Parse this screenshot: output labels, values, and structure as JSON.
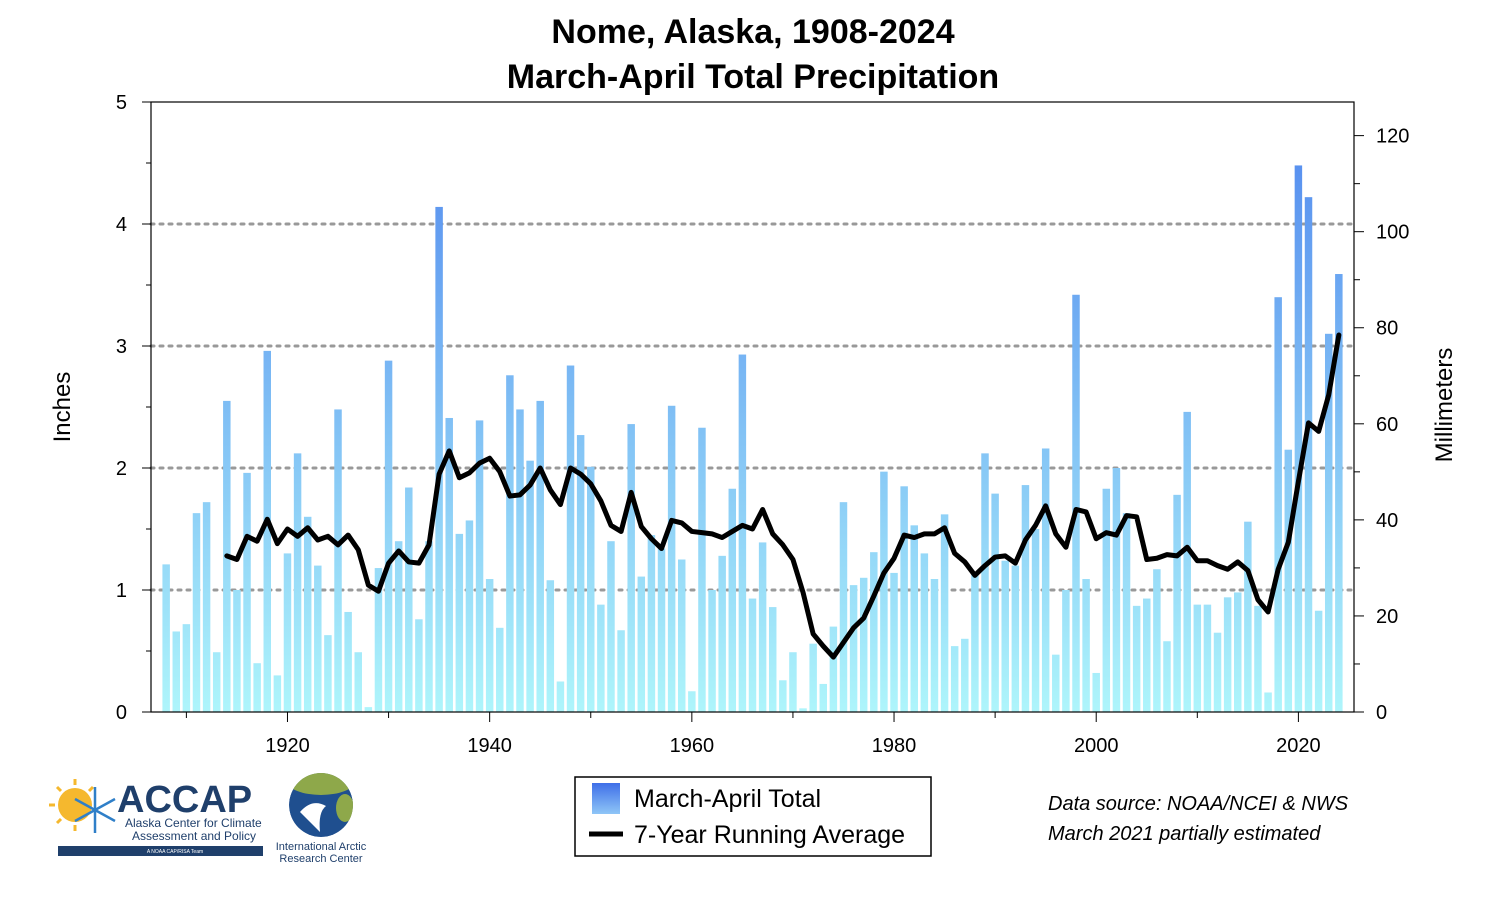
{
  "colors": {
    "bar_top": "#4f86ee",
    "bar_bottom": "#aef5fb",
    "line": "#000000",
    "grid": "#999999",
    "logo_navy": "#1f3f6b",
    "logo_yellow": "#f5b82e",
    "logo_blue": "#2f7fc8",
    "globe_blue": "#1f4f8f",
    "globe_green": "#8ea84a"
  },
  "logos": {
    "accap_name": "ACCAP",
    "accap_line1": "Alaska Center for Climate",
    "accap_line2": "Assessment and Policy",
    "accap_banner": "A NOAA CAP/RISA Team",
    "iarc_line1": "International Arctic",
    "iarc_line2": "Research Center",
    "icons": [
      "sun-icon",
      "snowflake-icon",
      "globe-icon",
      "bird-icon"
    ]
  },
  "source": {
    "line1": "Data source: NOAA/NCEI & NWS",
    "line2": "March 2021 partially estimated"
  },
  "chart_data": {
    "type": "bar",
    "title": "Nome, Alaska, 1908-2024",
    "subtitle": "March-April Total Precipitation",
    "ylabel": "Inches",
    "y2label": "Millimeters",
    "xlim": [
      1906.5,
      2025.5
    ],
    "ylim": [
      0,
      5
    ],
    "y2lim": [
      0,
      127
    ],
    "xticks": [
      1920,
      1940,
      1960,
      1980,
      2000,
      2020
    ],
    "yticks": [
      0,
      1,
      2,
      3,
      4,
      5
    ],
    "y2ticks": [
      0,
      20,
      40,
      60,
      80,
      100,
      120
    ],
    "grid": "horizontal dotted at 1, 2, 3, 4",
    "legend_placement": "bottom-center",
    "legend": [
      "March-April Total",
      "7-Year Running Average"
    ],
    "series": [
      {
        "name": "March-April Total",
        "type": "bar",
        "start_year": 1908,
        "values": [
          1.21,
          0.66,
          0.72,
          1.63,
          1.72,
          0.49,
          2.55,
          1.0,
          1.96,
          0.4,
          2.96,
          0.3,
          1.3,
          2.12,
          1.6,
          1.2,
          0.63,
          2.48,
          0.82,
          0.49,
          0.04,
          1.18,
          2.88,
          1.4,
          1.84,
          0.76,
          1.4,
          4.14,
          2.41,
          1.46,
          1.57,
          2.39,
          1.09,
          0.69,
          2.76,
          2.48,
          2.06,
          2.55,
          1.08,
          0.25,
          2.84,
          2.27,
          2.01,
          0.88,
          1.4,
          0.67,
          2.36,
          1.11,
          1.45,
          1.34,
          2.51,
          1.25,
          0.17,
          2.33,
          1.0,
          1.28,
          1.83,
          2.93,
          0.93,
          1.39,
          0.86,
          0.26,
          0.49,
          0.03,
          0.56,
          0.23,
          0.7,
          1.72,
          1.04,
          1.1,
          1.31,
          1.97,
          1.14,
          1.85,
          1.53,
          1.3,
          1.09,
          1.62,
          0.54,
          0.6,
          1.14,
          2.12,
          1.79,
          1.24,
          1.2,
          1.86,
          1.5,
          2.16,
          0.47,
          1.0,
          3.42,
          1.09,
          0.32,
          1.83,
          2.0,
          1.63,
          0.87,
          0.93,
          1.17,
          0.58,
          1.78,
          2.46,
          0.88,
          0.88,
          0.65,
          0.94,
          0.98,
          1.56,
          0.87,
          0.16,
          3.4,
          2.15,
          4.48,
          4.22,
          0.83,
          3.1,
          3.59
        ]
      },
      {
        "name": "7-Year Running Average",
        "type": "line",
        "start_year": 1914,
        "values": [
          1.28,
          1.25,
          1.44,
          1.4,
          1.58,
          1.38,
          1.5,
          1.44,
          1.51,
          1.41,
          1.44,
          1.37,
          1.45,
          1.33,
          1.04,
          0.99,
          1.22,
          1.32,
          1.23,
          1.22,
          1.37,
          1.95,
          2.14,
          1.92,
          1.96,
          2.04,
          2.08,
          1.97,
          1.77,
          1.78,
          1.86,
          2.0,
          1.82,
          1.7,
          2.0,
          1.95,
          1.87,
          1.73,
          1.53,
          1.48,
          1.8,
          1.52,
          1.42,
          1.34,
          1.57,
          1.55,
          1.48,
          1.47,
          1.46,
          1.43,
          1.48,
          1.53,
          1.5,
          1.66,
          1.46,
          1.37,
          1.25,
          0.98,
          0.64,
          0.54,
          0.45,
          0.57,
          0.69,
          0.77,
          0.95,
          1.14,
          1.26,
          1.45,
          1.43,
          1.46,
          1.46,
          1.51,
          1.3,
          1.23,
          1.12,
          1.2,
          1.27,
          1.28,
          1.22,
          1.41,
          1.53,
          1.69,
          1.46,
          1.35,
          1.66,
          1.64,
          1.42,
          1.47,
          1.45,
          1.61,
          1.6,
          1.25,
          1.26,
          1.29,
          1.28,
          1.35,
          1.24,
          1.24,
          1.2,
          1.17,
          1.23,
          1.16,
          0.92,
          0.82,
          1.17,
          1.39,
          1.89,
          2.37,
          2.3,
          2.6,
          3.09
        ]
      }
    ]
  }
}
